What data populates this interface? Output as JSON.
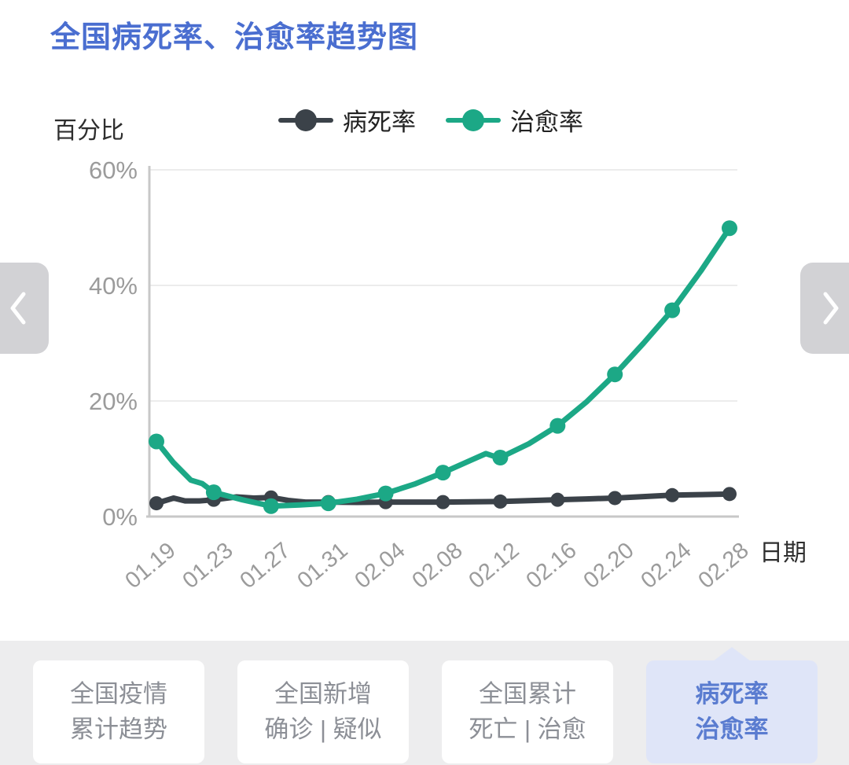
{
  "header": {
    "title": "全国病死率、治愈率趋势图",
    "title_color": "#4a6ed0"
  },
  "chart_data": {
    "type": "line",
    "title": "全国病死率、治愈率趋势图",
    "ylabel": "百分比",
    "xlabel": "日期",
    "ylim": [
      0,
      60
    ],
    "grid": true,
    "legend_position": "top",
    "ytick_labels": [
      "60%",
      "40%",
      "20%",
      "0%"
    ],
    "ytick_values": [
      60,
      40,
      20,
      0
    ],
    "categories": [
      "01.19",
      "01.23",
      "01.27",
      "01.31",
      "02.04",
      "02.08",
      "02.12",
      "02.16",
      "02.20",
      "02.24",
      "02.28"
    ],
    "series": [
      {
        "name": "病死率",
        "color": "#3b4249",
        "values": [
          2.3,
          2.9,
          3.3,
          2.5,
          2.5,
          2.5,
          2.6,
          2.9,
          3.2,
          3.7,
          3.9
        ]
      },
      {
        "name": "治愈率",
        "color": "#1ca886",
        "values": [
          13.0,
          4.2,
          1.8,
          2.3,
          4.0,
          7.6,
          10.2,
          15.7,
          24.6,
          35.7,
          49.9
        ]
      }
    ],
    "detail_paths": [
      {
        "series": "病死率",
        "points": [
          [
            0,
            2.3
          ],
          [
            0.3,
            3.2
          ],
          [
            0.5,
            2.7
          ],
          [
            0.75,
            2.7
          ],
          [
            1,
            2.9
          ],
          [
            1.4,
            3.4
          ],
          [
            1.7,
            3.2
          ],
          [
            2,
            3.3
          ],
          [
            2.3,
            2.8
          ],
          [
            2.6,
            2.5
          ],
          [
            3,
            2.5
          ],
          [
            3.5,
            2.45
          ],
          [
            4,
            2.5
          ],
          [
            4.5,
            2.5
          ],
          [
            5,
            2.5
          ],
          [
            5.5,
            2.55
          ],
          [
            6,
            2.6
          ],
          [
            6.5,
            2.75
          ],
          [
            7,
            2.9
          ],
          [
            7.5,
            3.05
          ],
          [
            8,
            3.2
          ],
          [
            8.5,
            3.45
          ],
          [
            9,
            3.7
          ],
          [
            9.5,
            3.8
          ],
          [
            10,
            3.9
          ]
        ]
      },
      {
        "series": "治愈率",
        "points": [
          [
            0,
            13.0
          ],
          [
            0.3,
            9.3
          ],
          [
            0.6,
            6.3
          ],
          [
            0.8,
            5.7
          ],
          [
            1,
            4.2
          ],
          [
            1.5,
            2.9
          ],
          [
            2,
            1.8
          ],
          [
            2.5,
            2.0
          ],
          [
            3,
            2.3
          ],
          [
            3.5,
            3.0
          ],
          [
            4,
            4.0
          ],
          [
            4.5,
            5.6
          ],
          [
            5,
            7.6
          ],
          [
            5.5,
            9.8
          ],
          [
            5.75,
            10.9
          ],
          [
            5.9,
            10.4
          ],
          [
            6,
            10.2
          ],
          [
            6.5,
            12.6
          ],
          [
            7,
            15.7
          ],
          [
            7.5,
            19.8
          ],
          [
            8,
            24.6
          ],
          [
            8.5,
            30.0
          ],
          [
            9,
            35.7
          ],
          [
            9.5,
            42.5
          ],
          [
            10,
            49.9
          ]
        ]
      }
    ]
  },
  "navigation": {
    "prev_icon": "chevron-left",
    "next_icon": "chevron-right",
    "button_color": "#d2d2d5"
  },
  "tabs": {
    "active_bg": "#dfe5f8",
    "active_text": "#5a7cd0",
    "inactive_text": "#8c8f96",
    "items": [
      {
        "lines": [
          "全国疫情",
          "累计趋势"
        ],
        "active": false
      },
      {
        "lines": [
          "全国新增",
          "确诊 | 疑似"
        ],
        "active": false
      },
      {
        "lines": [
          "全国累计",
          "死亡 | 治愈"
        ],
        "active": false
      },
      {
        "lines": [
          "病死率",
          "治愈率"
        ],
        "active": true
      }
    ]
  }
}
